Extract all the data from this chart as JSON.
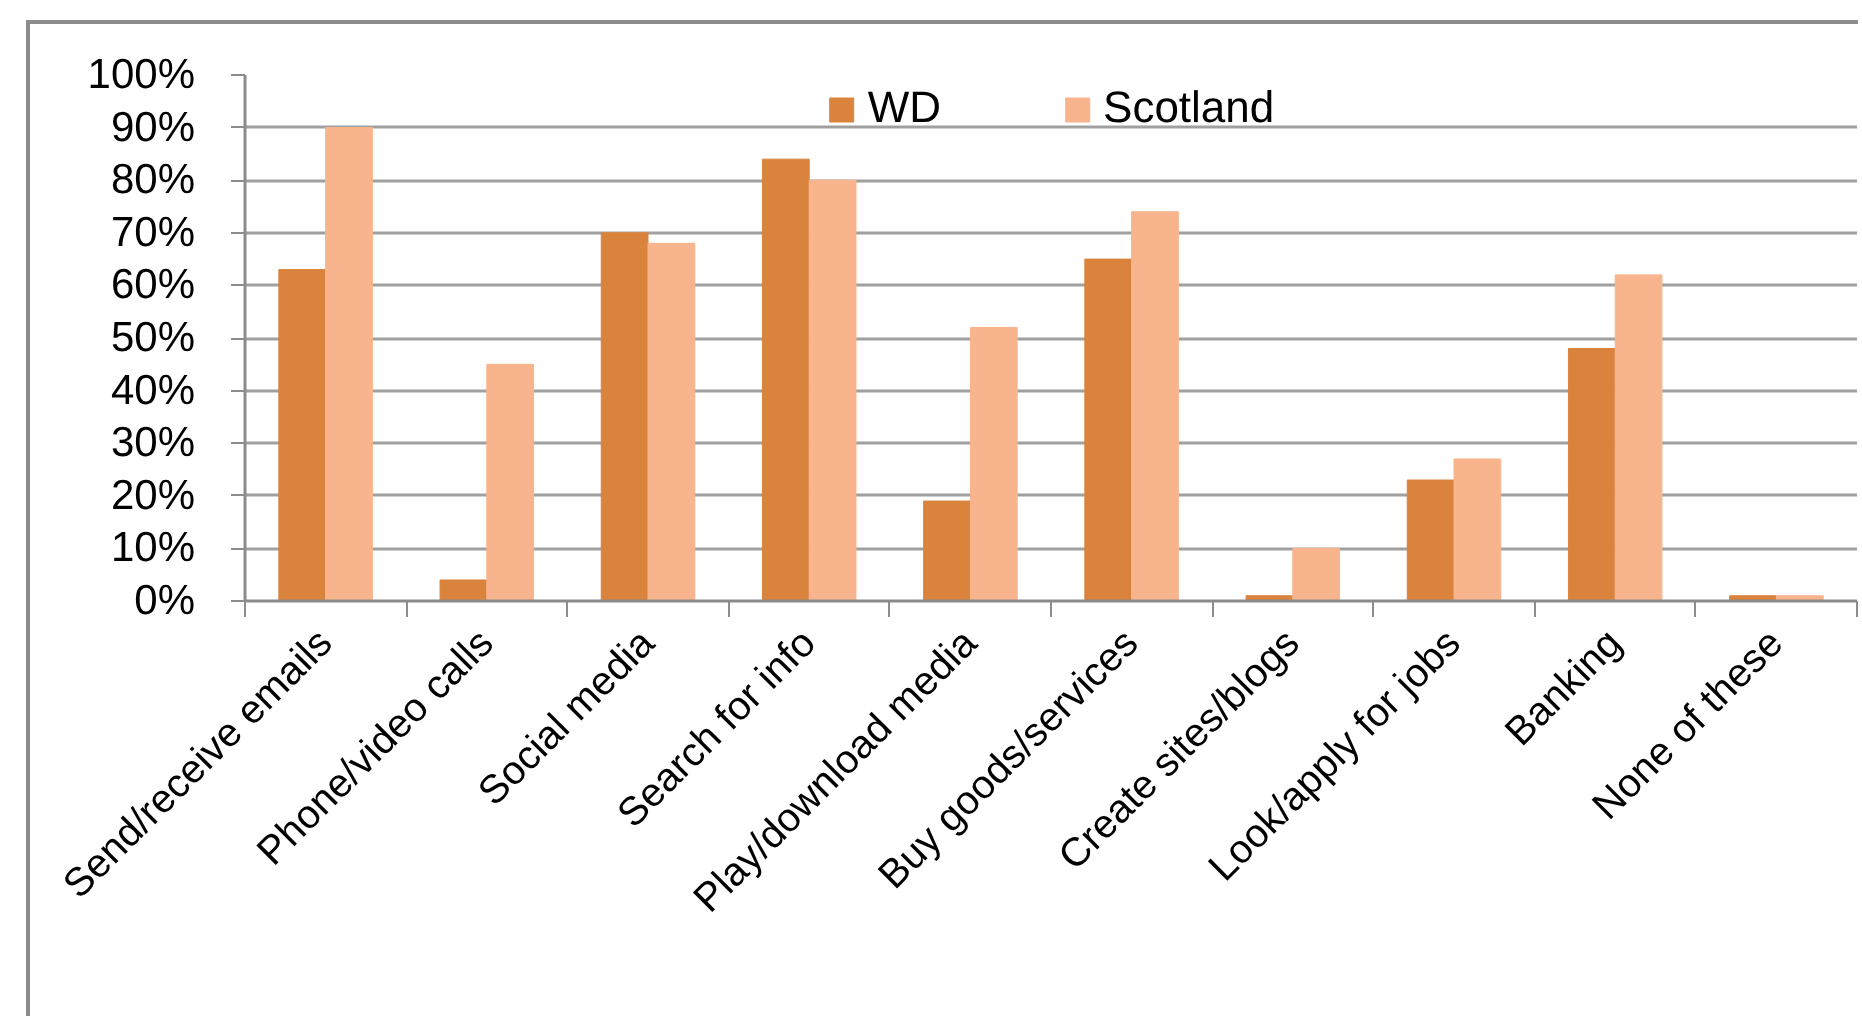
{
  "chart_data": {
    "type": "bar",
    "categories": [
      "Send/receive emails",
      "Phone/video calls",
      "Social media",
      "Search for info",
      "Play/download media",
      "Buy goods/services",
      "Create sites/blogs",
      "Look/apply for jobs",
      "Banking",
      "None of these"
    ],
    "series": [
      {
        "name": "WD",
        "color": "#da833d",
        "values": [
          63,
          4,
          70,
          84,
          19,
          65,
          1,
          23,
          48,
          1
        ]
      },
      {
        "name": "Scotland",
        "color": "#f8b48d",
        "values": [
          90,
          45,
          68,
          80,
          52,
          74,
          10,
          27,
          62,
          1
        ]
      }
    ],
    "ylim": [
      0,
      100
    ],
    "yticks": [
      {
        "value": 0,
        "label": "0%"
      },
      {
        "value": 10,
        "label": "10%"
      },
      {
        "value": 20,
        "label": "20%"
      },
      {
        "value": 30,
        "label": "30%"
      },
      {
        "value": 40,
        "label": "40%"
      },
      {
        "value": 50,
        "label": "50%"
      },
      {
        "value": 60,
        "label": "60%"
      },
      {
        "value": 70,
        "label": "70%"
      },
      {
        "value": 80,
        "label": "80%"
      },
      {
        "value": 90,
        "label": "90%"
      },
      {
        "value": 100,
        "label": "100%"
      }
    ],
    "grid": "y",
    "legend": "top"
  }
}
